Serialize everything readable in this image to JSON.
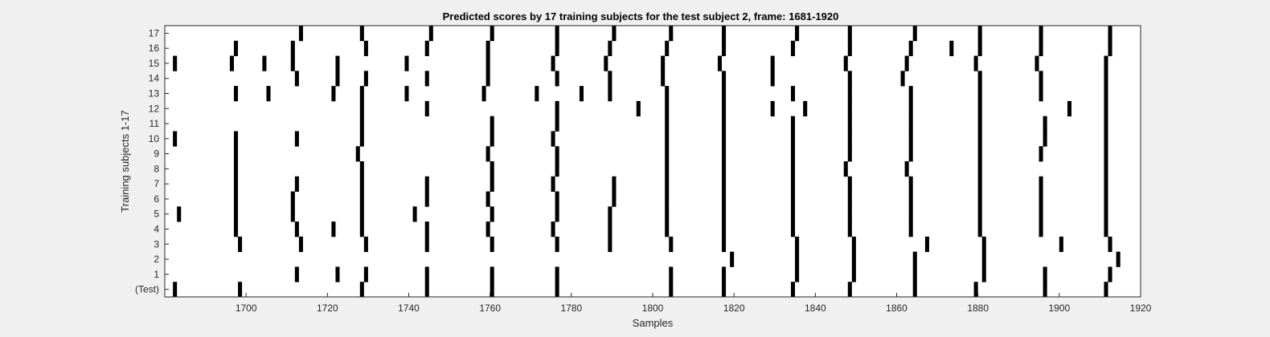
{
  "chart_data": {
    "type": "heatmap",
    "title": "Predicted scores by 17 training subjects for the test subject 2, frame: 1681-1920",
    "xlabel": "Samples",
    "ylabel": "Training subjects 1-17",
    "xlim": [
      1681,
      1920
    ],
    "xticks": [
      1700,
      1720,
      1740,
      1760,
      1780,
      1800,
      1820,
      1840,
      1860,
      1880,
      1900,
      1920
    ],
    "yticks": [
      "(Test)",
      "1",
      "2",
      "3",
      "4",
      "5",
      "6",
      "7",
      "8",
      "9",
      "10",
      "11",
      "12",
      "13",
      "14",
      "15",
      "16",
      "17"
    ],
    "grid": false,
    "colors": {
      "background": "#ffffff",
      "mark": "#000000"
    },
    "rows": [
      {
        "row": "(Test)",
        "events": [
          1683,
          1699,
          1729,
          1745,
          1761,
          1777,
          1805,
          1818,
          1835,
          1849,
          1865,
          1880,
          1897,
          1912
        ]
      },
      {
        "row": "1",
        "events": [
          1713,
          1723,
          1730,
          1745,
          1761,
          1777,
          1805,
          1818,
          1836,
          1850,
          1865,
          1882,
          1897,
          1913
        ]
      },
      {
        "row": "2",
        "events": [
          1820,
          1836,
          1850,
          1865,
          1882,
          1915
        ]
      },
      {
        "row": "3",
        "events": [
          1699,
          1714,
          1730,
          1745,
          1761,
          1777,
          1790,
          1805,
          1818,
          1836,
          1850,
          1868,
          1882,
          1901,
          1913
        ]
      },
      {
        "row": "4",
        "events": [
          1698,
          1713,
          1722,
          1729,
          1745,
          1760,
          1776,
          1790,
          1804,
          1818,
          1835,
          1849,
          1864,
          1881,
          1896,
          1912
        ]
      },
      {
        "row": "5",
        "events": [
          1684,
          1698,
          1712,
          1729,
          1742,
          1761,
          1777,
          1790,
          1804,
          1818,
          1835,
          1849,
          1864,
          1881,
          1896,
          1912
        ]
      },
      {
        "row": "6",
        "events": [
          1698,
          1712,
          1729,
          1745,
          1760,
          1777,
          1791,
          1804,
          1818,
          1835,
          1849,
          1864,
          1881,
          1896,
          1912
        ]
      },
      {
        "row": "7",
        "events": [
          1698,
          1713,
          1729,
          1745,
          1761,
          1776,
          1791,
          1804,
          1818,
          1835,
          1849,
          1864,
          1881,
          1896,
          1912
        ]
      },
      {
        "row": "8",
        "events": [
          1698,
          1729,
          1761,
          1777,
          1804,
          1818,
          1835,
          1848,
          1863,
          1881,
          1912
        ]
      },
      {
        "row": "9",
        "events": [
          1698,
          1728,
          1760,
          1777,
          1804,
          1818,
          1835,
          1849,
          1864,
          1881,
          1896,
          1912
        ]
      },
      {
        "row": "10",
        "events": [
          1683,
          1698,
          1713,
          1729,
          1761,
          1776,
          1804,
          1818,
          1835,
          1849,
          1864,
          1881,
          1897,
          1912
        ]
      },
      {
        "row": "11",
        "events": [
          1729,
          1761,
          1777,
          1804,
          1818,
          1835,
          1849,
          1864,
          1881,
          1897,
          1912
        ]
      },
      {
        "row": "12",
        "events": [
          1729,
          1745,
          1777,
          1797,
          1804,
          1818,
          1830,
          1838,
          1849,
          1864,
          1881,
          1903,
          1912
        ]
      },
      {
        "row": "13",
        "events": [
          1698,
          1706,
          1722,
          1729,
          1740,
          1759,
          1772,
          1783,
          1790,
          1804,
          1818,
          1835,
          1849,
          1864,
          1881,
          1896,
          1912
        ]
      },
      {
        "row": "14",
        "events": [
          1713,
          1723,
          1730,
          1745,
          1760,
          1777,
          1790,
          1803,
          1818,
          1830,
          1849,
          1862,
          1881,
          1896,
          1912
        ]
      },
      {
        "row": "15",
        "events": [
          1683,
          1697,
          1705,
          1712,
          1723,
          1740,
          1760,
          1776,
          1789,
          1803,
          1817,
          1830,
          1848,
          1863,
          1880,
          1895,
          1912
        ]
      },
      {
        "row": "16",
        "events": [
          1698,
          1712,
          1730,
          1745,
          1760,
          1777,
          1790,
          1804,
          1818,
          1835,
          1849,
          1864,
          1874,
          1881,
          1896,
          1913
        ]
      },
      {
        "row": "17",
        "events": [
          1714,
          1729,
          1746,
          1761,
          1777,
          1791,
          1805,
          1818,
          1836,
          1849,
          1865,
          1881,
          1896,
          1913
        ]
      }
    ]
  }
}
